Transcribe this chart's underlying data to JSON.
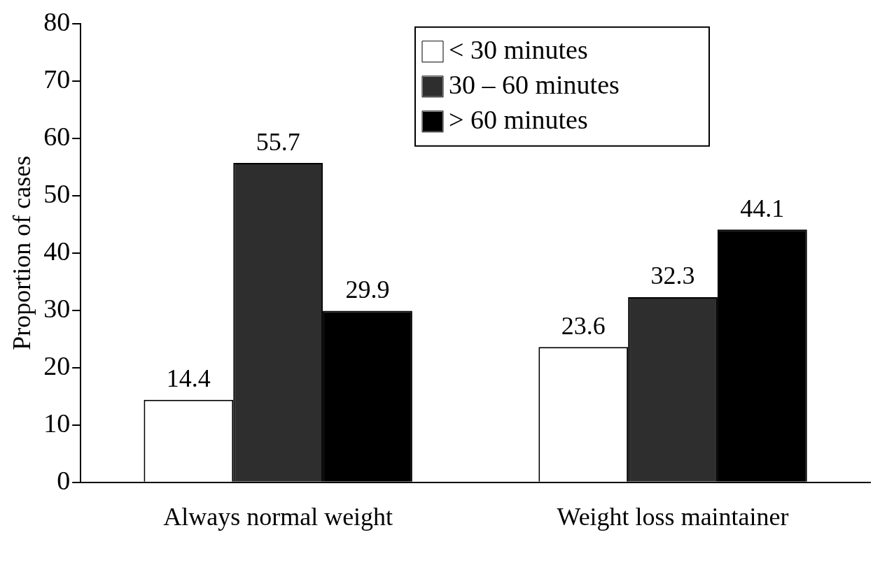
{
  "chart_data": {
    "type": "bar",
    "ylabel": "Proportion of cases",
    "categories": [
      "Always normal weight",
      "Weight loss maintainer"
    ],
    "series": [
      {
        "name": "< 30 minutes",
        "color": "#ffffff",
        "values": [
          14.4,
          23.6
        ]
      },
      {
        "name": "30 – 60 minutes",
        "color": "#2e2e2e",
        "values": [
          55.7,
          32.3
        ]
      },
      {
        "name": "> 60 minutes",
        "color": "#000000",
        "values": [
          29.9,
          44.1
        ]
      }
    ],
    "ylim": [
      0,
      80
    ],
    "yticks": [
      0,
      10,
      20,
      30,
      40,
      50,
      60,
      70,
      80
    ],
    "grid": false,
    "legend": "top right",
    "data_labels": true
  }
}
